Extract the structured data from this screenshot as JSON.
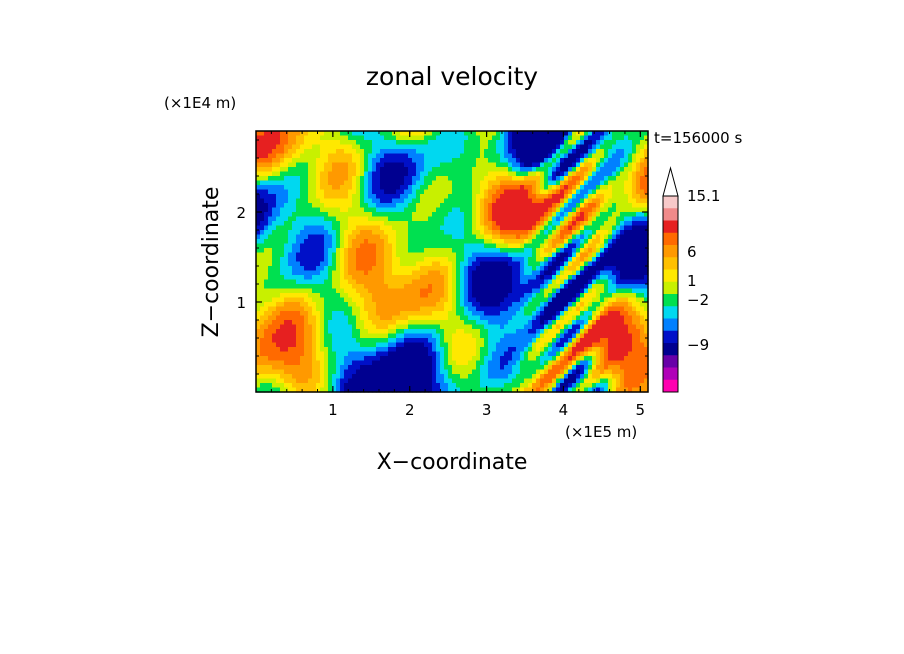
{
  "chart_data": {
    "type": "heatmap",
    "title": "zonal velocity",
    "xlabel": "X−coordinate",
    "ylabel": "Z−coordinate",
    "x_unit": "(×1E5 m)",
    "y_unit": "(×1E4 m)",
    "time_label": "t=156000 s",
    "xlim": [
      0,
      5.1
    ],
    "ylim": [
      0,
      2.9
    ],
    "x_ticks": [
      {
        "value": 1,
        "label": "1"
      },
      {
        "value": 2,
        "label": "2"
      },
      {
        "value": 3,
        "label": "3"
      },
      {
        "value": 4,
        "label": "4"
      },
      {
        "value": 5,
        "label": "5"
      }
    ],
    "y_ticks": [
      {
        "value": 1,
        "label": "1"
      },
      {
        "value": 2,
        "label": "2"
      }
    ],
    "colorbar": {
      "labels": [
        {
          "level": 15.1,
          "label": "15.1"
        },
        {
          "level": 6,
          "label": "6"
        },
        {
          "level": 1,
          "label": "1"
        },
        {
          "level": -2,
          "label": "−2"
        },
        {
          "level": -9,
          "label": "−9"
        }
      ],
      "colors_top_to_bottom": [
        "#f7c9c9",
        "#f08a8a",
        "#e62020",
        "#ff6a00",
        "#ff9900",
        "#ffc000",
        "#ffe800",
        "#c8f000",
        "#00e050",
        "#00d8f0",
        "#0080ff",
        "#0010c8",
        "#000090",
        "#6800a8",
        "#b000b8",
        "#ff00b0"
      ],
      "extend": "max"
    }
  }
}
